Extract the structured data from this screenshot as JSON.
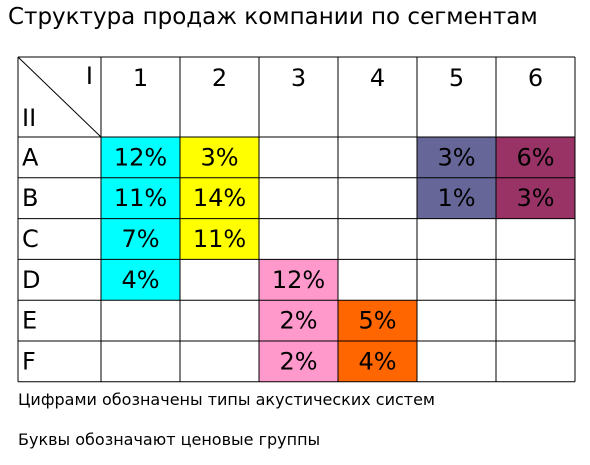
{
  "header": {
    "title": "Структура продаж компании по сегментам"
  },
  "table": {
    "corner": {
      "top_right": "I",
      "bottom_left": "II"
    },
    "columns": [
      "1",
      "2",
      "3",
      "4",
      "5",
      "6"
    ],
    "rows": [
      {
        "label": "A",
        "cells": [
          {
            "text": "12%",
            "color": "#00ffff"
          },
          {
            "text": "3%",
            "color": "#ffff00"
          },
          null,
          null,
          {
            "text": "3%",
            "color": "#666699"
          },
          {
            "text": "6%",
            "color": "#993366"
          }
        ]
      },
      {
        "label": "B",
        "cells": [
          {
            "text": "11%",
            "color": "#00ffff"
          },
          {
            "text": "14%",
            "color": "#ffff00"
          },
          null,
          null,
          {
            "text": "1%",
            "color": "#666699"
          },
          {
            "text": "3%",
            "color": "#993366"
          }
        ]
      },
      {
        "label": "C",
        "cells": [
          {
            "text": "7%",
            "color": "#00ffff"
          },
          {
            "text": "11%",
            "color": "#ffff00"
          },
          null,
          null,
          null,
          null
        ]
      },
      {
        "label": "D",
        "cells": [
          {
            "text": "4%",
            "color": "#00ffff"
          },
          null,
          {
            "text": "12%",
            "color": "#ff99cc"
          },
          null,
          null,
          null
        ]
      },
      {
        "label": "E",
        "cells": [
          null,
          null,
          {
            "text": "2%",
            "color": "#ff99cc"
          },
          {
            "text": "5%",
            "color": "#ff6600"
          },
          null,
          null
        ]
      },
      {
        "label": "F",
        "cells": [
          null,
          null,
          {
            "text": "2%",
            "color": "#ff99cc"
          },
          {
            "text": "4%",
            "color": "#ff6600"
          },
          null,
          null
        ]
      }
    ]
  },
  "notes": [
    "Цифрами обозначены типы акустических систем",
    "Буквы обозначают ценовые группы"
  ]
}
